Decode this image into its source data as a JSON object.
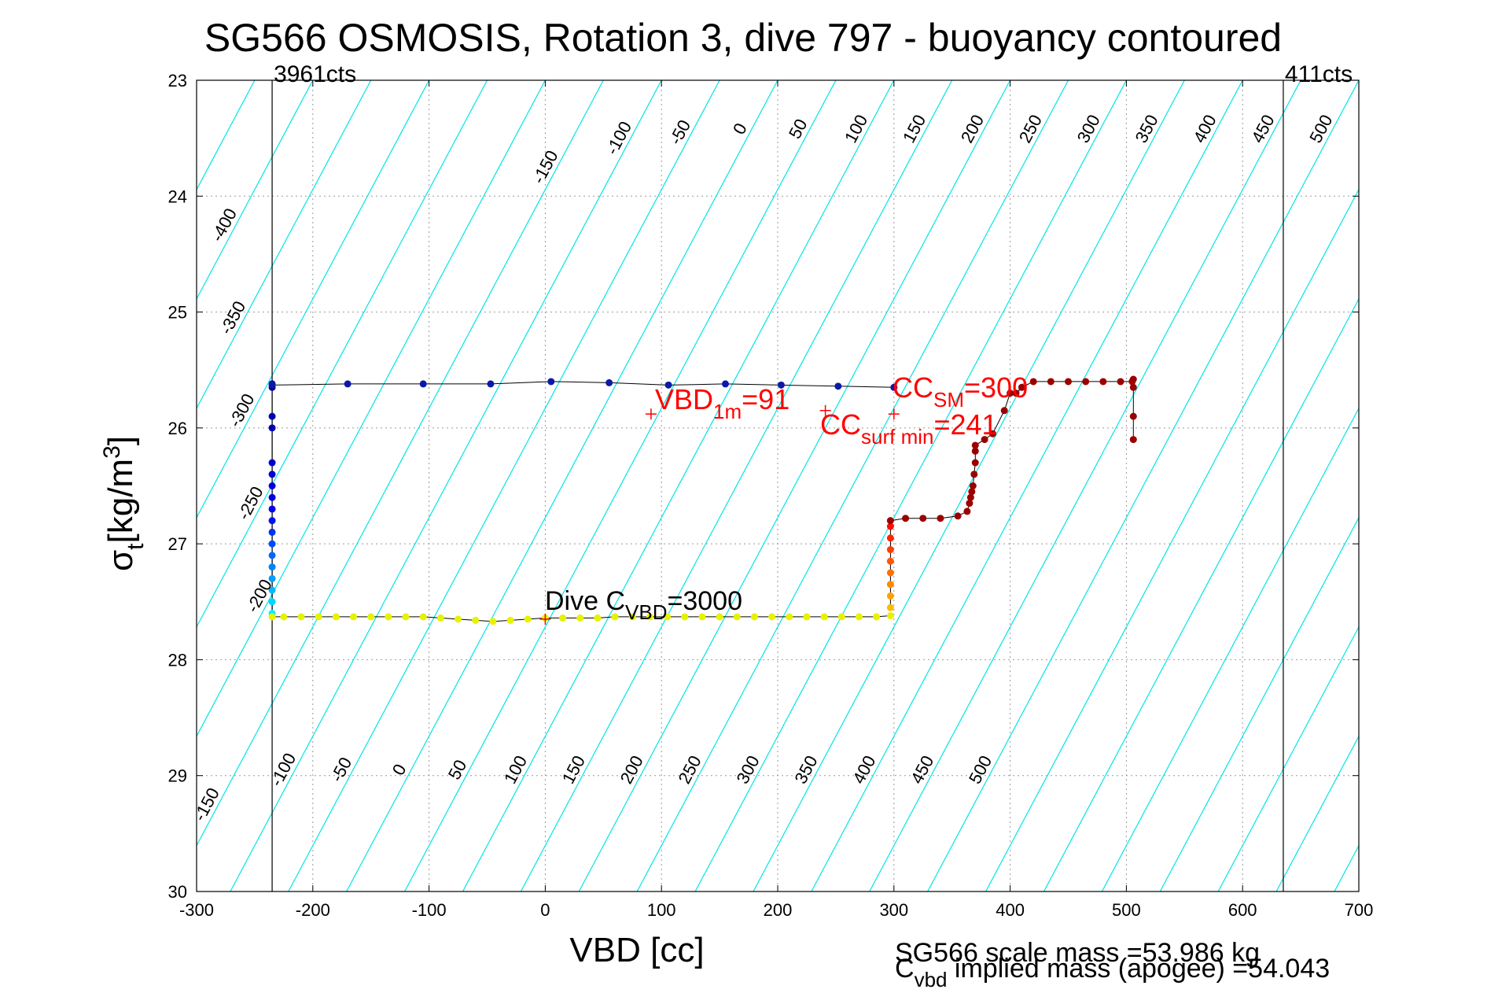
{
  "chart_data": {
    "type": "scatter",
    "title": "SG566 OSMOSIS, Rotation 3, dive 797 - buoyancy contoured",
    "xlabel": "VBD [cc]",
    "ylabel_main": "σ",
    "ylabel_sub": "t",
    "ylabel_unit": "[kg/m",
    "ylabel_sup": "3",
    "ylabel_close": "]",
    "xlim": [
      -300,
      700
    ],
    "ylim": [
      23,
      30
    ],
    "y_reversed": true,
    "grid": true,
    "x_ticks": [
      "-300",
      "-200",
      "-100",
      "0",
      "100",
      "200",
      "300",
      "400",
      "500",
      "600",
      "700"
    ],
    "y_ticks": [
      "23",
      "24",
      "25",
      "26",
      "27",
      "28",
      "29",
      "30"
    ],
    "counts_left": "3961cts",
    "counts_right": "411cts",
    "counts_left_x": -235,
    "counts_right_x": 635,
    "contour_top_labels": [
      "-400",
      "-350",
      "-300",
      "-250",
      "-200",
      "-150",
      "-100",
      "-50",
      "0",
      "50",
      "100",
      "150",
      "200",
      "250",
      "300",
      "350",
      "400",
      "450",
      "500"
    ],
    "contour_bottom_labels": [
      "-150",
      "-100",
      "-50",
      "0",
      "50",
      "100",
      "150",
      "200",
      "250",
      "300",
      "350",
      "400",
      "450",
      "500"
    ],
    "contours": {
      "slope_cc_per_sigma": -53,
      "intercept_step": 50,
      "intercept_range": [
        -700,
        1250
      ],
      "zero_intercept_at_sigma23": 190,
      "color_default": "#00e5e5",
      "color_zero": "#0000cc",
      "color_magenta": "#ff00ff",
      "magenta_levels": [
        100,
        200
      ]
    },
    "dive_series": [
      [
        -235,
        27.6
      ],
      [
        -235,
        27.5
      ],
      [
        -235,
        27.4
      ],
      [
        -235,
        27.3
      ],
      [
        -235,
        27.2
      ],
      [
        -235,
        27.1
      ],
      [
        -235,
        27.0
      ],
      [
        -235,
        26.9
      ],
      [
        -235,
        26.8
      ],
      [
        -235,
        26.7
      ],
      [
        -235,
        26.6
      ],
      [
        -235,
        26.5
      ],
      [
        -235,
        26.4
      ],
      [
        -235,
        26.3
      ],
      [
        -235,
        26.0
      ],
      [
        -235,
        25.9
      ],
      [
        -235,
        25.65
      ],
      [
        -235,
        25.62
      ]
    ],
    "apogee_series": [
      [
        -235,
        27.63
      ],
      [
        -225,
        27.63
      ],
      [
        -210,
        27.63
      ],
      [
        -195,
        27.63
      ],
      [
        -180,
        27.63
      ],
      [
        -165,
        27.63
      ],
      [
        -150,
        27.63
      ],
      [
        -135,
        27.63
      ],
      [
        -120,
        27.63
      ],
      [
        -105,
        27.63
      ],
      [
        -90,
        27.64
      ],
      [
        -75,
        27.65
      ],
      [
        -60,
        27.66
      ],
      [
        -45,
        27.67
      ],
      [
        -30,
        27.66
      ],
      [
        -15,
        27.65
      ],
      [
        0,
        27.64
      ],
      [
        15,
        27.64
      ],
      [
        30,
        27.64
      ],
      [
        45,
        27.64
      ],
      [
        60,
        27.63
      ],
      [
        75,
        27.63
      ],
      [
        90,
        27.63
      ],
      [
        105,
        27.63
      ],
      [
        120,
        27.63
      ],
      [
        135,
        27.63
      ],
      [
        150,
        27.63
      ],
      [
        165,
        27.63
      ],
      [
        180,
        27.63
      ],
      [
        195,
        27.63
      ],
      [
        210,
        27.63
      ],
      [
        225,
        27.63
      ],
      [
        240,
        27.63
      ],
      [
        255,
        27.63
      ],
      [
        270,
        27.63
      ],
      [
        285,
        27.63
      ],
      [
        297,
        27.62
      ]
    ],
    "climb_series": [
      [
        297,
        27.55
      ],
      [
        297,
        27.45
      ],
      [
        297,
        27.35
      ],
      [
        297,
        27.25
      ],
      [
        297,
        27.15
      ],
      [
        297,
        27.05
      ],
      [
        297,
        26.95
      ],
      [
        297,
        26.85
      ],
      [
        297,
        26.8
      ],
      [
        310,
        26.78
      ],
      [
        325,
        26.78
      ],
      [
        340,
        26.78
      ],
      [
        355,
        26.76
      ],
      [
        363,
        26.72
      ],
      [
        365,
        26.65
      ],
      [
        366,
        26.6
      ],
      [
        367,
        26.55
      ],
      [
        368,
        26.5
      ],
      [
        369,
        26.4
      ],
      [
        370,
        26.3
      ],
      [
        370,
        26.2
      ],
      [
        370,
        26.15
      ],
      [
        378,
        26.1
      ],
      [
        385,
        26.05
      ],
      [
        395,
        25.85
      ],
      [
        400,
        25.7
      ],
      [
        405,
        25.7
      ],
      [
        410,
        25.65
      ],
      [
        420,
        25.6
      ],
      [
        435,
        25.6
      ],
      [
        450,
        25.6
      ],
      [
        465,
        25.6
      ],
      [
        480,
        25.6
      ],
      [
        495,
        25.6
      ],
      [
        505,
        25.6
      ],
      [
        506,
        25.58
      ],
      [
        506,
        25.65
      ],
      [
        506,
        25.9
      ],
      [
        506,
        26.1
      ]
    ],
    "surface_series": [
      [
        -235,
        25.63
      ],
      [
        -170,
        25.62
      ],
      [
        -105,
        25.62
      ],
      [
        -47,
        25.62
      ],
      [
        5,
        25.6
      ],
      [
        55,
        25.61
      ],
      [
        106,
        25.63
      ],
      [
        155,
        25.62
      ],
      [
        203,
        25.63
      ],
      [
        252,
        25.64
      ],
      [
        300,
        25.65
      ]
    ],
    "markers": [
      {
        "x": 91,
        "y": 25.88,
        "color": "#ff0000"
      },
      {
        "x": 241,
        "y": 25.85,
        "color": "#ff0000"
      },
      {
        "x": 300,
        "y": 25.88,
        "color": "#ff0000"
      },
      {
        "x": 0,
        "y": 27.65,
        "color": "#ff0000"
      }
    ],
    "annotations": {
      "vbd1m_main": "VBD",
      "vbd1m_sub": "1m",
      "vbd1m_value": "=91",
      "ccsm_main": "CC",
      "ccsm_sub": "SM",
      "ccsm_value": "=300",
      "ccsurf_main": "CC",
      "ccsurf_sub": "surf min",
      "ccsurf_value": "=241",
      "cvbd_main": "Dive C",
      "cvbd_sub": "VBD",
      "cvbd_value": "=3000"
    },
    "footer_scale_mass": "SG566 scale mass =53.986 kg",
    "footer_implied_main": "C",
    "footer_implied_sub": "vbd",
    "footer_implied_text": " implied mass (apogee) =54.043"
  }
}
